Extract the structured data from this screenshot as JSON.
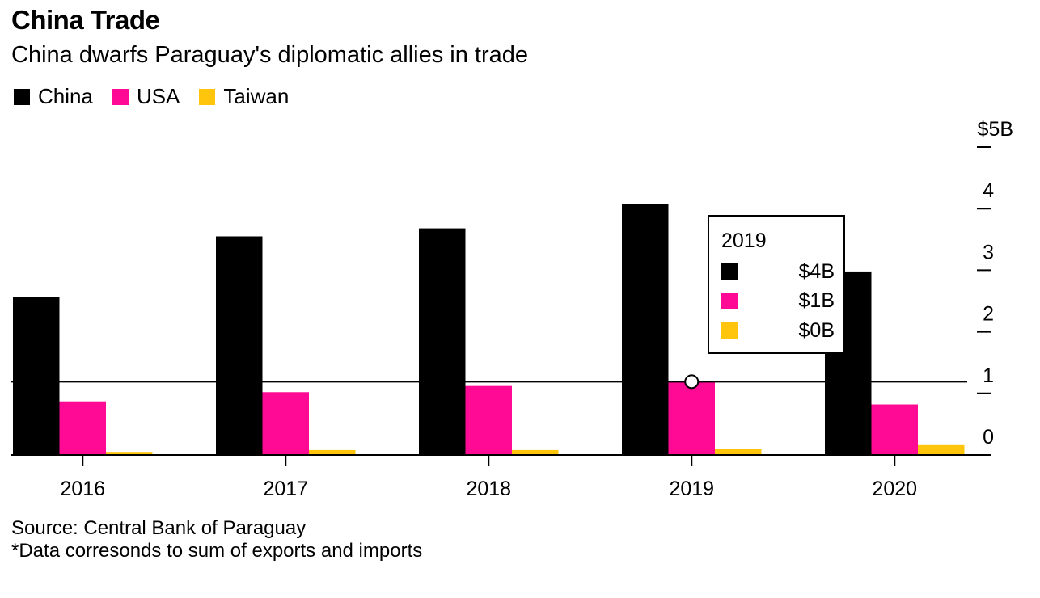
{
  "title": "China Trade",
  "subtitle": "China dwarfs Paraguay's diplomatic allies in trade",
  "legend": [
    {
      "name": "China",
      "color": "#000000"
    },
    {
      "name": "USA",
      "color": "#ff0a94"
    },
    {
      "name": "Taiwan",
      "color": "#ffc40c"
    }
  ],
  "tooltip": {
    "year": "2019",
    "rows": [
      {
        "color": "#000000",
        "value": "$4B"
      },
      {
        "color": "#ff0a94",
        "value": "$1B"
      },
      {
        "color": "#ffc40c",
        "value": "$0B"
      }
    ]
  },
  "source": "Source: Central Bank of Paraguay",
  "note": "*Data corresonds to sum of exports and imports",
  "chart_data": {
    "type": "bar",
    "categories": [
      "2016",
      "2017",
      "2018",
      "2019",
      "2020"
    ],
    "series": [
      {
        "name": "China",
        "color": "#000000",
        "values": [
          2.56,
          3.55,
          3.68,
          4.07,
          2.98
        ]
      },
      {
        "name": "USA",
        "color": "#ff0a94",
        "values": [
          0.87,
          1.02,
          1.12,
          1.19,
          0.82
        ]
      },
      {
        "name": "Taiwan",
        "color": "#ffc40c",
        "values": [
          0.05,
          0.08,
          0.08,
          0.1,
          0.16
        ]
      }
    ],
    "ylim": [
      0,
      5
    ],
    "yticks": [
      0,
      1,
      2,
      3,
      4,
      5
    ],
    "ytick_labels": [
      "0",
      "1",
      "2",
      "3",
      "4",
      "$5B"
    ],
    "axis_position": "right",
    "hover_year": "2019",
    "reference_line_value": 1.19
  }
}
